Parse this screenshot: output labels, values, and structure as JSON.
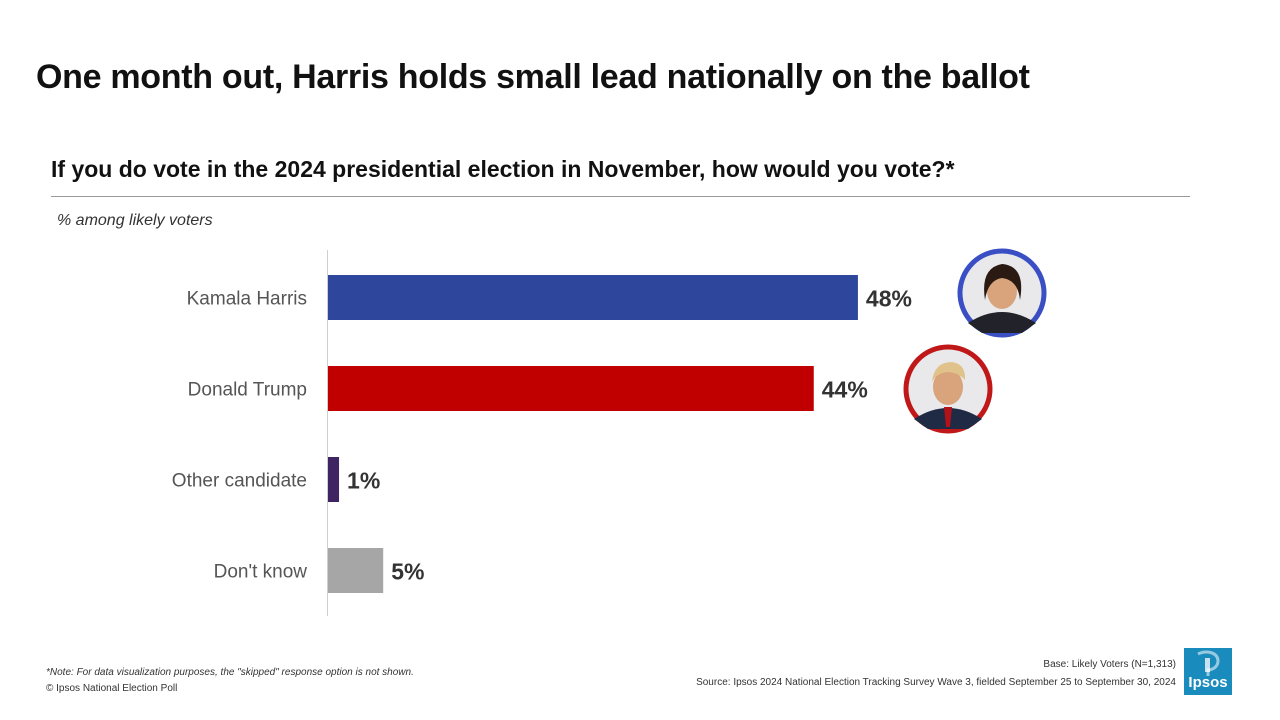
{
  "title": "One month out, Harris holds small lead nationally on the ballot",
  "subtitle": "If you do vote in the 2024 presidential election in November, how would you vote?*",
  "base_label": "% among likely voters",
  "colors": {
    "harris": "#2e479c",
    "trump": "#c00000",
    "other": "#3f2464",
    "dont_know": "#a6a6a6",
    "harris_ring": "#3a4fc4",
    "trump_ring": "#c01818",
    "logo": "#1a8bbd"
  },
  "chart_data": {
    "type": "bar",
    "orientation": "horizontal",
    "title": "If you do vote in the 2024 presidential election in November, how would you vote?*",
    "ylabel": "% among likely voters",
    "categories": [
      "Kamala Harris",
      "Donald Trump",
      "Other candidate",
      "Don't know"
    ],
    "values": [
      48,
      44,
      1,
      5
    ],
    "value_labels": [
      "48%",
      "44%",
      "1%",
      "5%"
    ],
    "xlim": [
      0,
      100
    ],
    "grid": false,
    "legend": "none"
  },
  "footer": {
    "note": "*Note: For data visualization purposes, the \"skipped\" response option is not shown.",
    "copyright": "© Ipsos National Election Poll",
    "base": "Base: Likely Voters (N=1,313)",
    "source": "Source: Ipsos 2024 National Election Tracking Survey Wave 3, fielded September 25 to September 30, 2024"
  },
  "logo_text": "Ipsos"
}
